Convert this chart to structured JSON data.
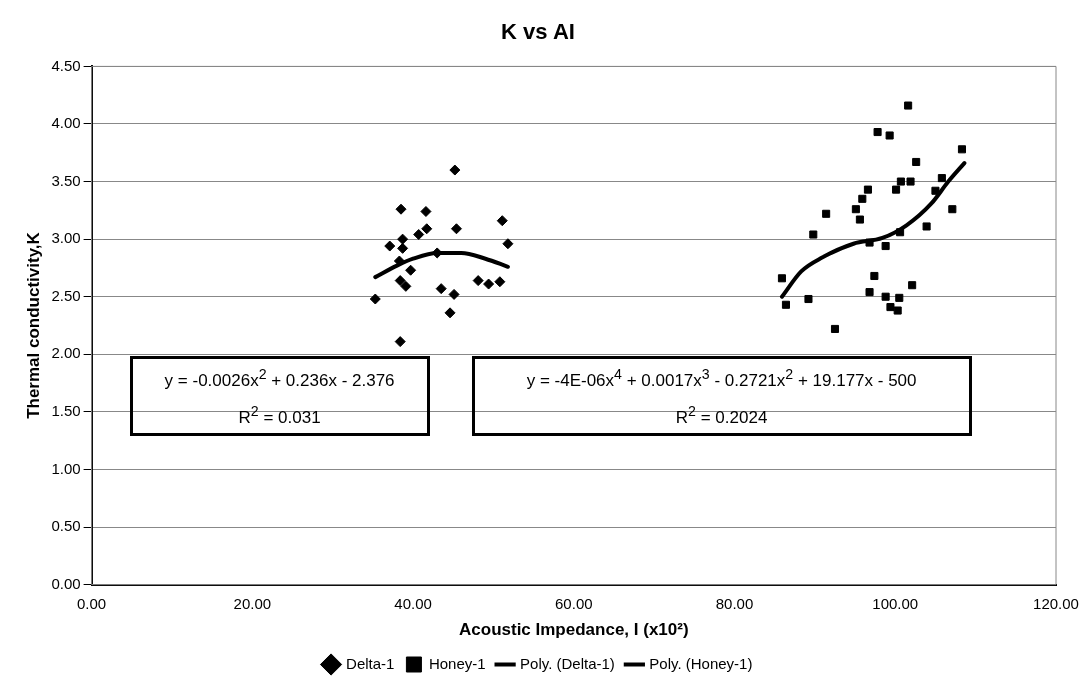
{
  "chart_data": {
    "type": "scatter",
    "title": "K vs AI",
    "xlabel": "Acoustic Impedance, I (x10²)",
    "ylabel": "Thermal conductivity,K",
    "xlim": [
      0,
      120
    ],
    "xticks": [
      {
        "value": 0,
        "label": "0.00"
      },
      {
        "value": 20,
        "label": "20.00"
      },
      {
        "value": 40,
        "label": "40.00"
      },
      {
        "value": 60,
        "label": "60.00"
      },
      {
        "value": 80,
        "label": "80.00"
      },
      {
        "value": 100,
        "label": "100.00"
      },
      {
        "value": 120,
        "label": "120.00"
      }
    ],
    "ylim": [
      0,
      4.5
    ],
    "yticks": [
      {
        "value": 0,
        "label": "0.00"
      },
      {
        "value": 0.5,
        "label": "0.50"
      },
      {
        "value": 1,
        "label": "1.00"
      },
      {
        "value": 1.5,
        "label": "1.50"
      },
      {
        "value": 2,
        "label": "2.00"
      },
      {
        "value": 2.5,
        "label": "2.50"
      },
      {
        "value": 3,
        "label": "3.00"
      },
      {
        "value": 3.5,
        "label": "3.50"
      },
      {
        "value": 4,
        "label": "4.00"
      },
      {
        "value": 4.5,
        "label": "4.50"
      }
    ],
    "grid": "y",
    "legend": "bottom",
    "annotations": [
      "y = -0.0026x$^{2}$ + 0.236x - 2.376",
      "R$^{2}$ = 0.031",
      "y = -4E-06x$^{4}$ + 0.0017x$^{3}$ - 0.2721x$^{2}$ + 19.177x - 500",
      "R$^{2}$ = 0.2024"
    ],
    "series": [
      {
        "name": "Delta-1",
        "marker": "diamond",
        "color": "#000000",
        "x": [
          35.3,
          37.1,
          38.7,
          40.7,
          41.7,
          38.7,
          38.3,
          39.7,
          38.4,
          39.1,
          43.0,
          45.4,
          51.1,
          51.8,
          48.1,
          49.4,
          50.8,
          43.5,
          45.1,
          44.6,
          38.4,
          45.2,
          38.5,
          41.6
        ],
        "values": [
          2.48,
          2.94,
          3.0,
          3.04,
          3.09,
          2.92,
          2.81,
          2.73,
          2.64,
          2.59,
          2.88,
          3.09,
          3.16,
          2.96,
          2.64,
          2.61,
          2.63,
          2.57,
          2.52,
          2.36,
          2.11,
          3.6,
          3.26,
          3.24
        ]
      },
      {
        "name": "Honey-1",
        "marker": "square",
        "color": "#000000",
        "x": [
          101.6,
          97.8,
          99.3,
          108.3,
          102.6,
          105.8,
          100.7,
          101.9,
          100.1,
          96.6,
          105.0,
          95.9,
          95.1,
          95.6,
          91.4,
          107.1,
          103.9,
          89.8,
          100.6,
          96.8,
          98.8,
          85.9,
          97.4,
          96.8,
          98.8,
          100.5,
          102.1,
          86.4,
          89.2,
          99.4,
          100.3,
          92.5
        ],
        "values": [
          4.16,
          3.93,
          3.9,
          3.78,
          3.67,
          3.53,
          3.5,
          3.5,
          3.43,
          3.43,
          3.42,
          3.35,
          3.26,
          3.17,
          3.22,
          3.26,
          3.11,
          3.04,
          3.06,
          2.97,
          2.94,
          2.66,
          2.68,
          2.54,
          2.5,
          2.49,
          2.6,
          2.43,
          2.48,
          2.41,
          2.38,
          2.22
        ]
      },
      {
        "name": "Poly. (Delta-1)",
        "type": "line",
        "marker": "none",
        "color": "#000000",
        "x": [
          35.3,
          38,
          40,
          43,
          46,
          49,
          51.8
        ],
        "values": [
          2.67,
          2.77,
          2.83,
          2.88,
          2.88,
          2.83,
          2.76
        ]
      },
      {
        "name": "Poly. (Honey-1)",
        "type": "line",
        "marker": "none",
        "color": "#000000",
        "x": [
          85.9,
          88.3,
          90.9,
          94.8,
          98.4,
          101.4,
          104.5,
          106.6,
          108.6
        ],
        "values": [
          2.5,
          2.72,
          2.84,
          2.96,
          3.01,
          3.12,
          3.31,
          3.5,
          3.66
        ]
      }
    ]
  }
}
